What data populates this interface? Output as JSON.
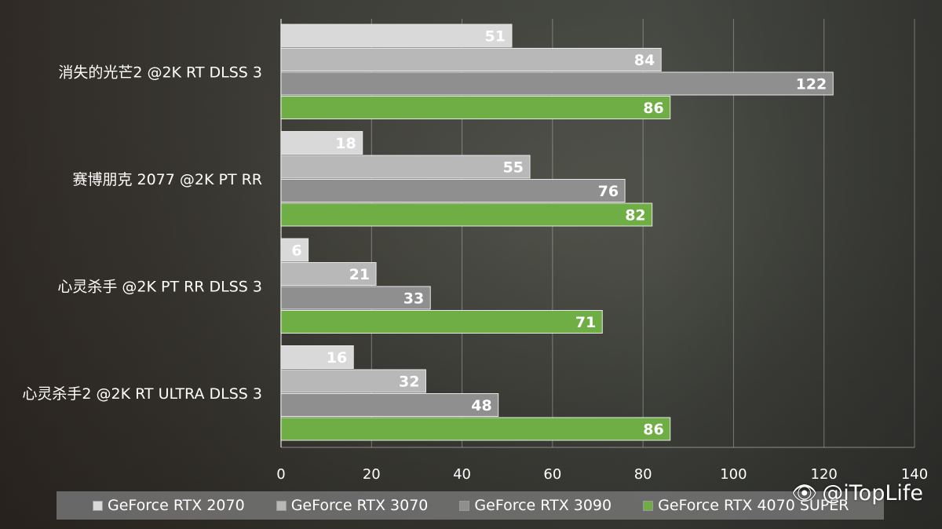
{
  "chart_data": {
    "type": "bar",
    "orientation": "horizontal",
    "categories": [
      "消失的光芒2 @2K RT DLSS 3",
      "赛博朋克 2077 @2K PT RR",
      "心灵杀手 @2K PT RR DLSS 3",
      "心灵杀手2 @2K RT ULTRA DLSS 3"
    ],
    "series": [
      {
        "name": "GeForce RTX 2070",
        "color": "#d9d9d9",
        "values": [
          51,
          18,
          6,
          16
        ]
      },
      {
        "name": "GeForce RTX 3070",
        "color": "#b8b8b8",
        "values": [
          84,
          55,
          21,
          32
        ]
      },
      {
        "name": "GeForce RTX 3090",
        "color": "#8f8f8f",
        "values": [
          122,
          76,
          33,
          48
        ]
      },
      {
        "name": "GeForce RTX 4070 SUPER",
        "color": "#6fae45",
        "values": [
          86,
          82,
          71,
          86
        ]
      }
    ],
    "xlim": [
      0,
      140
    ],
    "xticks": [
      "0",
      "20",
      "40",
      "60",
      "80",
      "100",
      "120",
      "140"
    ],
    "grid": true,
    "legend_position": "bottom"
  },
  "watermark": {
    "icon": "weibo-icon",
    "text": "@iTopLife"
  }
}
